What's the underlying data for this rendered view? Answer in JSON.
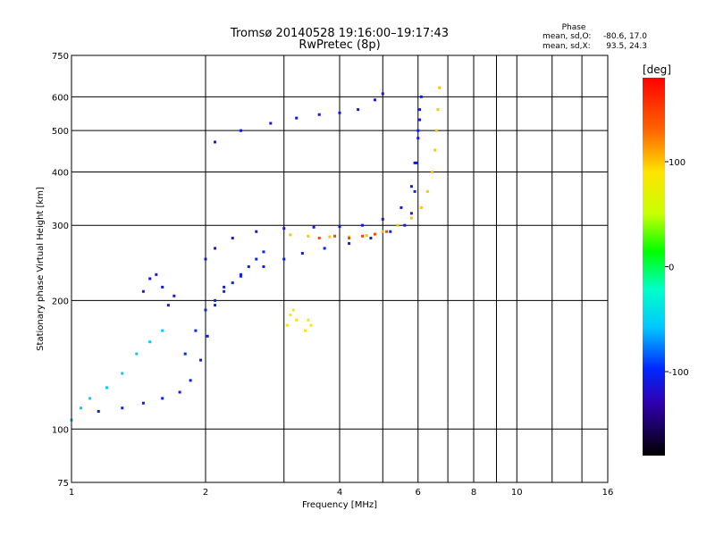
{
  "chart_data": {
    "type": "scatter",
    "title": "Tromsø 20140528  19:16:00–19:17:43",
    "subtitle": "RwPretec (8p)",
    "xlabel": "Frequency [MHz]",
    "ylabel": "Stationary phase Virtual Height [km]",
    "x_scale": "log",
    "y_scale": "log",
    "xlim": [
      1,
      16
    ],
    "ylim": [
      75,
      750
    ],
    "x_ticks": [
      1,
      2,
      4,
      6,
      8,
      10,
      16
    ],
    "x_minor_ticks": [
      3,
      5,
      7,
      9,
      12,
      14
    ],
    "y_ticks": [
      75,
      100,
      200,
      300,
      400,
      500,
      600,
      750
    ],
    "grid": true,
    "stats": {
      "heading": "Phase",
      "line1_label": "mean, sd,O:",
      "line1_value": "-80.6, 17.0",
      "line2_label": "mean, sd,X:",
      "line2_value": "93.5, 24.3"
    },
    "colorbar": {
      "unit": "[deg]",
      "range": [
        -180,
        180
      ],
      "ticks": [
        100,
        0,
        -100
      ],
      "colormap": "rainbow"
    },
    "traces": [
      {
        "description": "O-mode E/F1 lower trace",
        "phase": -105,
        "points": [
          [
            1.15,
            110
          ],
          [
            1.3,
            112
          ],
          [
            1.45,
            115
          ],
          [
            1.6,
            118
          ],
          [
            1.75,
            122
          ],
          [
            1.85,
            130
          ],
          [
            1.95,
            145
          ],
          [
            2.02,
            165
          ],
          [
            2.1,
            195
          ],
          [
            2.2,
            215
          ],
          [
            2.4,
            228
          ],
          [
            2.7,
            240
          ],
          [
            3.0,
            250
          ],
          [
            3.3,
            258
          ],
          [
            3.7,
            265
          ],
          [
            4.2,
            272
          ],
          [
            4.7,
            280
          ],
          [
            5.2,
            290
          ],
          [
            5.6,
            300
          ],
          [
            5.8,
            320
          ],
          [
            5.9,
            360
          ],
          [
            5.95,
            420
          ],
          [
            6.0,
            500
          ],
          [
            6.05,
            560
          ]
        ]
      },
      {
        "description": "O-mode F2 trace",
        "phase": -110,
        "points": [
          [
            2.0,
            250
          ],
          [
            2.1,
            265
          ],
          [
            2.3,
            280
          ],
          [
            2.6,
            290
          ],
          [
            3.0,
            295
          ],
          [
            3.5,
            297
          ],
          [
            4.0,
            298
          ],
          [
            4.5,
            300
          ],
          [
            5.0,
            310
          ],
          [
            5.5,
            330
          ],
          [
            5.8,
            370
          ],
          [
            5.9,
            420
          ],
          [
            6.0,
            480
          ],
          [
            6.05,
            530
          ],
          [
            6.1,
            600
          ]
        ]
      },
      {
        "description": "X-mode trace",
        "phase": 100,
        "points": [
          [
            3.1,
            285
          ],
          [
            3.4,
            283
          ],
          [
            3.8,
            282
          ],
          [
            4.2,
            282
          ],
          [
            4.6,
            284
          ],
          [
            5.0,
            290
          ],
          [
            5.4,
            300
          ],
          [
            5.8,
            312
          ],
          [
            6.1,
            330
          ],
          [
            6.3,
            360
          ],
          [
            6.45,
            400
          ],
          [
            6.55,
            450
          ],
          [
            6.6,
            500
          ],
          [
            6.65,
            560
          ],
          [
            6.7,
            630
          ]
        ]
      },
      {
        "description": "X-mode orange bulge",
        "phase": 145,
        "points": [
          [
            3.6,
            280
          ],
          [
            3.9,
            283
          ],
          [
            4.2,
            280
          ],
          [
            4.5,
            283
          ],
          [
            4.8,
            286
          ],
          [
            5.1,
            290
          ]
        ]
      },
      {
        "description": "Upper F spread",
        "phase": -110,
        "points": [
          [
            2.1,
            470
          ],
          [
            2.4,
            500
          ],
          [
            2.8,
            520
          ],
          [
            3.2,
            535
          ],
          [
            3.6,
            545
          ],
          [
            4.0,
            550
          ],
          [
            4.4,
            560
          ],
          [
            4.8,
            590
          ],
          [
            5.0,
            610
          ]
        ]
      },
      {
        "description": "Lower-left cyan trace",
        "phase": -55,
        "points": [
          [
            1.0,
            105
          ],
          [
            1.05,
            112
          ],
          [
            1.1,
            118
          ],
          [
            1.2,
            125
          ],
          [
            1.3,
            135
          ],
          [
            1.4,
            150
          ],
          [
            1.5,
            160
          ],
          [
            1.6,
            170
          ]
        ]
      },
      {
        "description": "Sporadic cluster 1.5 MHz",
        "phase": -110,
        "points": [
          [
            1.45,
            210
          ],
          [
            1.5,
            225
          ],
          [
            1.55,
            230
          ],
          [
            1.6,
            215
          ],
          [
            1.7,
            205
          ],
          [
            1.65,
            195
          ]
        ]
      },
      {
        "description": "Yellow cluster 3.2 MHz",
        "phase": 90,
        "points": [
          [
            3.05,
            175
          ],
          [
            3.1,
            185
          ],
          [
            3.15,
            190
          ],
          [
            3.2,
            180
          ],
          [
            3.35,
            170
          ],
          [
            3.4,
            180
          ],
          [
            3.45,
            175
          ]
        ]
      },
      {
        "description": "Dense diffuse band 1.9-2.7 MHz",
        "phase": -100,
        "points": [
          [
            1.8,
            150
          ],
          [
            1.9,
            170
          ],
          [
            2.0,
            190
          ],
          [
            2.1,
            200
          ],
          [
            2.2,
            210
          ],
          [
            2.3,
            220
          ],
          [
            2.4,
            230
          ],
          [
            2.5,
            240
          ],
          [
            2.6,
            250
          ],
          [
            2.7,
            260
          ]
        ]
      }
    ]
  }
}
